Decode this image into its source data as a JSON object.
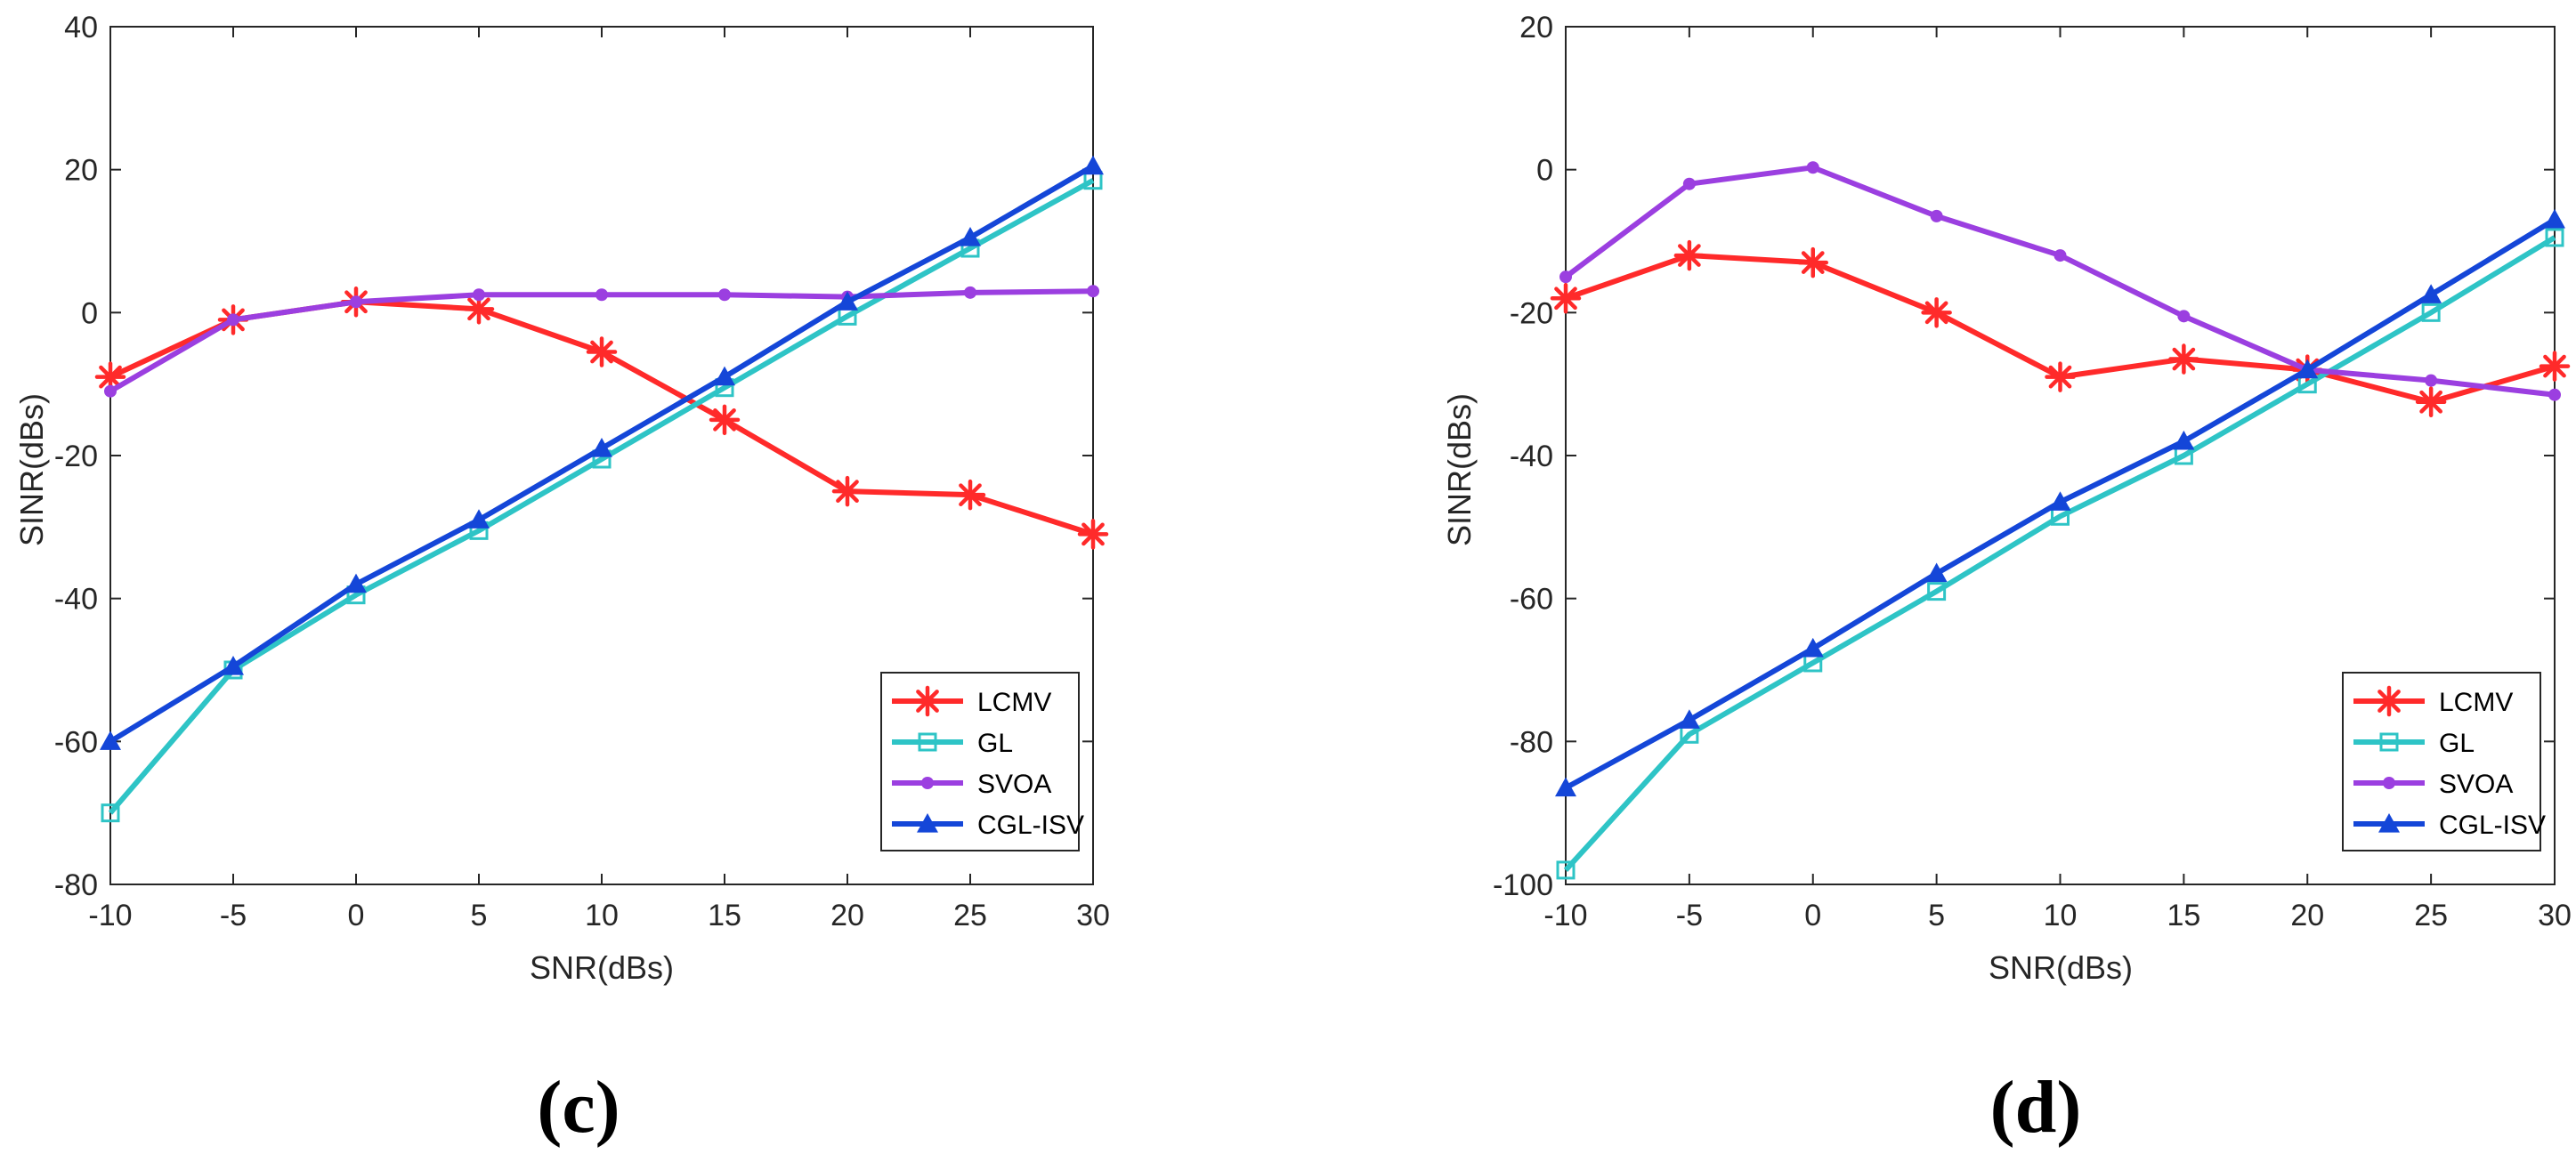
{
  "chart_data": [
    {
      "type": "line",
      "panel_label": "(c)",
      "xlabel": "SNR(dBs)",
      "ylabel": "SINR(dBs)",
      "xlim": [
        -10,
        30
      ],
      "ylim": [
        -80,
        40
      ],
      "xticks": [
        -10,
        -5,
        0,
        5,
        10,
        15,
        20,
        25,
        30
      ],
      "yticks": [
        -80,
        -60,
        -40,
        -20,
        0,
        20,
        40
      ],
      "x": [
        -10,
        -5,
        0,
        5,
        10,
        15,
        20,
        25,
        30
      ],
      "legend_position": "bottom-right",
      "series": [
        {
          "name": "LCMV",
          "color": "#ff2a2a",
          "marker": "asterisk",
          "values": [
            -9,
            -1,
            1.5,
            0.5,
            -5.5,
            -15,
            -25,
            -25.5,
            -31
          ]
        },
        {
          "name": "GL",
          "color": "#2ec4c6",
          "marker": "square",
          "values": [
            -70,
            -50,
            -39.5,
            -30.5,
            -20.5,
            -10.5,
            -0.5,
            9,
            18.5
          ]
        },
        {
          "name": "SVOA",
          "color": "#9b3fe0",
          "marker": "circle",
          "values": [
            -11,
            -1,
            1.5,
            2.5,
            2.5,
            2.5,
            2.2,
            2.8,
            3
          ]
        },
        {
          "name": "CGL-ISV",
          "color": "#1446d8",
          "marker": "triangle",
          "values": [
            -60,
            -49.5,
            -38,
            -29,
            -19,
            -9,
            1.5,
            10.5,
            20.5
          ]
        }
      ]
    },
    {
      "type": "line",
      "panel_label": "(d)",
      "xlabel": "SNR(dBs)",
      "ylabel": "SINR(dBs)",
      "xlim": [
        -10,
        30
      ],
      "ylim": [
        -100,
        20
      ],
      "xticks": [
        -10,
        -5,
        0,
        5,
        10,
        15,
        20,
        25,
        30
      ],
      "yticks": [
        -100,
        -80,
        -60,
        -40,
        -20,
        0,
        20
      ],
      "x": [
        -10,
        -5,
        0,
        5,
        10,
        15,
        20,
        25,
        30
      ],
      "legend_position": "bottom-right",
      "series": [
        {
          "name": "LCMV",
          "color": "#ff2a2a",
          "marker": "asterisk",
          "values": [
            -18,
            -12,
            -13,
            -20,
            -29,
            -26.5,
            -28,
            -32.5,
            -27.5
          ]
        },
        {
          "name": "GL",
          "color": "#2ec4c6",
          "marker": "square",
          "values": [
            -98,
            -79,
            -69,
            -59,
            -48.5,
            -40,
            -30,
            -20,
            -9.5
          ]
        },
        {
          "name": "SVOA",
          "color": "#9b3fe0",
          "marker": "circle",
          "values": [
            -15,
            -2,
            0.3,
            -6.5,
            -12,
            -20.5,
            -28,
            -29.5,
            -31.5
          ]
        },
        {
          "name": "CGL-ISV",
          "color": "#1446d8",
          "marker": "triangle",
          "values": [
            -86.5,
            -77,
            -67,
            -56.5,
            -46.5,
            -38,
            -28,
            -17.5,
            -7
          ]
        }
      ]
    }
  ]
}
